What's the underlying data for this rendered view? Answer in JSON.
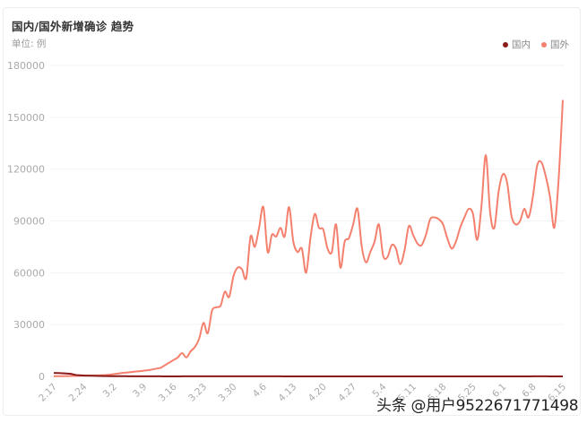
{
  "header": {
    "title": "国内/国外新增确诊 趋势",
    "unit": "单位: 例"
  },
  "legend": [
    {
      "label": "国内",
      "color": "#8b1a1a"
    },
    {
      "label": "国外",
      "color": "#f4806e"
    }
  ],
  "watermark": "头条 @用户9522671771498",
  "chart_data": {
    "type": "line",
    "title": "国内/国外新增确诊 趋势",
    "ylabel": "单位: 例",
    "xlabel": "",
    "ylim": [
      0,
      180000
    ],
    "yticks": [
      0,
      30000,
      60000,
      90000,
      120000,
      150000,
      180000
    ],
    "xtick_labels": [
      "2.17",
      "2.24",
      "3.2",
      "3.9",
      "3.16",
      "3.23",
      "3.30",
      "4.6",
      "4.13",
      "4.20",
      "4.27",
      "5.4",
      "5.11",
      "5.18",
      "5.25",
      "6.1",
      "6.8",
      "6.15"
    ],
    "grid": "horizontal",
    "legend_position": "top-right",
    "smooth": true,
    "x_start": "2.17",
    "x_end": "6.15",
    "days": 120,
    "series": [
      {
        "name": "国内",
        "color": "#8b1a1a",
        "values": [
          2000,
          1900,
          1800,
          1700,
          1500,
          900,
          600,
          500,
          450,
          400,
          300,
          250,
          200,
          150,
          120,
          100,
          90,
          80,
          70,
          60,
          50,
          45,
          40,
          35,
          30,
          30,
          25,
          25,
          20,
          20,
          30,
          35,
          40,
          45,
          50,
          55,
          60,
          65,
          70,
          60,
          55,
          50,
          45,
          40,
          40,
          35,
          35,
          30,
          30,
          30,
          30,
          30,
          28,
          28,
          25,
          25,
          22,
          20,
          20,
          20,
          20,
          18,
          18,
          16,
          16,
          15,
          15,
          14,
          14,
          12,
          12,
          12,
          10,
          10,
          10,
          10,
          10,
          8,
          8,
          8,
          8,
          8,
          8,
          8,
          8,
          6,
          6,
          6,
          6,
          6,
          6,
          6,
          6,
          5,
          5,
          5,
          5,
          5,
          5,
          5,
          5,
          5,
          5,
          5,
          5,
          5,
          5,
          5,
          5,
          5,
          5,
          20,
          30,
          40,
          35,
          30,
          25,
          20,
          15,
          12
        ]
      },
      {
        "name": "国外",
        "color": "#f4806e",
        "values": [
          100,
          100,
          150,
          200,
          250,
          300,
          350,
          400,
          450,
          500,
          550,
          650,
          800,
          1000,
          1300,
          1600,
          2000,
          2200,
          2500,
          2800,
          3000,
          3300,
          3600,
          4000,
          4500,
          5000,
          6500,
          8000,
          9500,
          11000,
          13500,
          11000,
          14500,
          17000,
          22000,
          31000,
          25000,
          38000,
          40000,
          41000,
          49000,
          46000,
          58000,
          63000,
          62000,
          57000,
          81000,
          75000,
          86000,
          98000,
          72000,
          82000,
          81000,
          86000,
          81000,
          98000,
          78000,
          72000,
          74000,
          60000,
          80000,
          94000,
          86000,
          85000,
          74000,
          72000,
          88000,
          63000,
          78000,
          80000,
          88000,
          97000,
          75000,
          66000,
          72000,
          78000,
          88000,
          70000,
          69000,
          76000,
          74000,
          65000,
          73000,
          87000,
          82000,
          77000,
          76000,
          82000,
          91000,
          92000,
          91000,
          88000,
          80000,
          74000,
          78000,
          86000,
          92000,
          97000,
          94000,
          79000,
          99000,
          128000,
          95000,
          86000,
          107000,
          117000,
          112000,
          93000,
          88000,
          90000,
          97000,
          92000,
          104000,
          122000,
          124000,
          116000,
          104000,
          86000,
          113000,
          160000
        ]
      }
    ]
  }
}
